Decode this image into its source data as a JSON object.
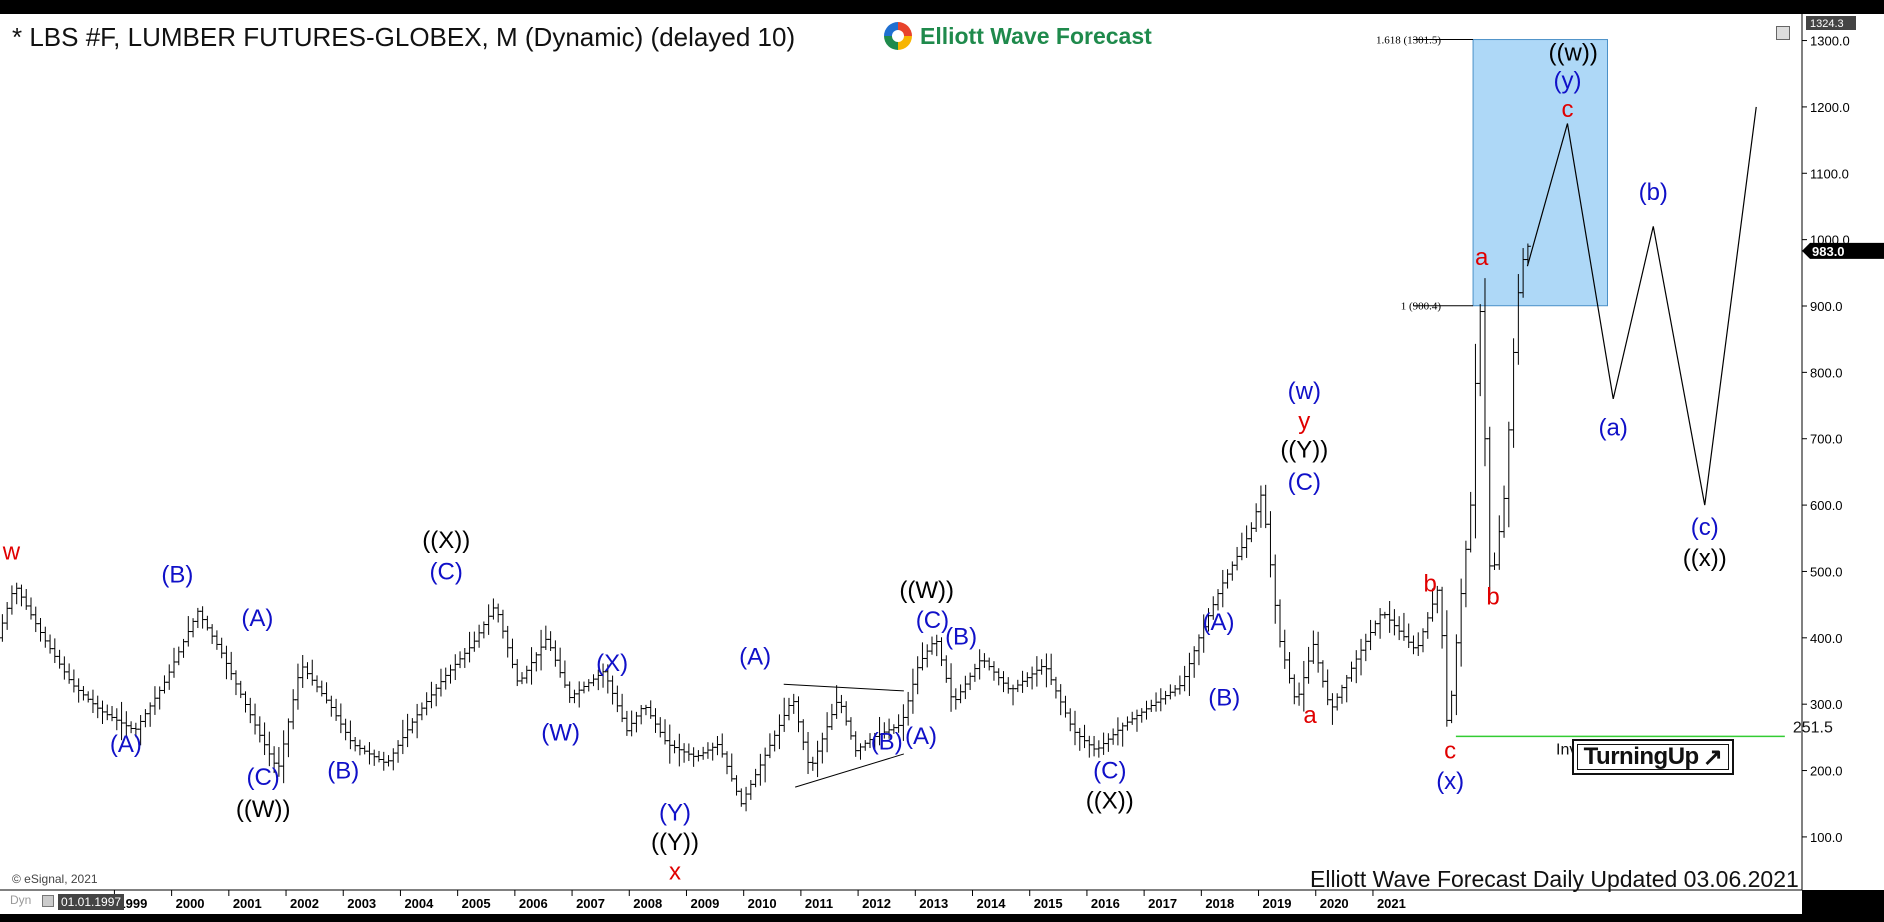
{
  "title": "* LBS #F, LUMBER FUTURES-GLOBEX, M (Dynamic) (delayed 10)",
  "logo_text": "Elliott Wave Forecast",
  "footer_text": "Elliott Wave Forecast Daily Updated 03.06.2021",
  "copyright": "© eSignal, 2021",
  "badge_text": "TurningUp",
  "badge_icon": "arrow-up-right-icon",
  "toolbar": {
    "dyn_label": "Dyn",
    "start_date": "01.01.1997"
  },
  "chart_data": {
    "type": "ohlc",
    "interval": "monthly",
    "colors": {
      "bars": "#000000",
      "wave_blue": "#1010c8",
      "wave_red": "#e00000",
      "wave_black": "#000000",
      "target_box": "#aed8f7",
      "invalidation": "#33cc33"
    },
    "y_ticks": [
      "100.0",
      "200.0",
      "300.0",
      "400.0",
      "500.0",
      "600.0",
      "700.0",
      "800.0",
      "900.0",
      "1000.0",
      "1100.0",
      "1200.0",
      "1300.0"
    ],
    "x_ticks": [
      "1999",
      "2000",
      "2001",
      "2002",
      "2003",
      "2004",
      "2005",
      "2006",
      "2007",
      "2008",
      "2009",
      "2010",
      "2011",
      "2012",
      "2013",
      "2014",
      "2015",
      "2016",
      "2017",
      "2018",
      "2019",
      "2020",
      "2021"
    ],
    "ylim": [
      20,
      1340
    ],
    "xlim": [
      1997.0,
      2028.5
    ],
    "last_price_label": "983.0",
    "axis_top_label": "1324.3",
    "anchors": [
      [
        1997.0,
        400
      ],
      [
        1997.3,
        480
      ],
      [
        1997.8,
        400
      ],
      [
        1998.3,
        330
      ],
      [
        1998.8,
        290
      ],
      [
        1999.4,
        260
      ],
      [
        1999.9,
        330
      ],
      [
        2000.5,
        440
      ],
      [
        2000.9,
        380
      ],
      [
        2001.6,
        250
      ],
      [
        2001.9,
        200
      ],
      [
        2002.3,
        360
      ],
      [
        2002.8,
        300
      ],
      [
        2003.2,
        240
      ],
      [
        2003.8,
        210
      ],
      [
        2004.3,
        280
      ],
      [
        2004.8,
        340
      ],
      [
        2005.3,
        390
      ],
      [
        2005.7,
        450
      ],
      [
        2006.1,
        330
      ],
      [
        2006.6,
        400
      ],
      [
        2007.0,
        310
      ],
      [
        2007.6,
        350
      ],
      [
        2008.0,
        260
      ],
      [
        2008.3,
        300
      ],
      [
        2008.7,
        240
      ],
      [
        2009.2,
        220
      ],
      [
        2009.6,
        240
      ],
      [
        2010.0,
        150
      ],
      [
        2010.4,
        220
      ],
      [
        2010.9,
        310
      ],
      [
        2011.2,
        200
      ],
      [
        2011.7,
        310
      ],
      [
        2012.0,
        230
      ],
      [
        2012.3,
        250
      ],
      [
        2012.8,
        270
      ],
      [
        2013.1,
        360
      ],
      [
        2013.4,
        400
      ],
      [
        2013.7,
        300
      ],
      [
        2014.2,
        370
      ],
      [
        2014.7,
        320
      ],
      [
        2015.3,
        360
      ],
      [
        2015.8,
        260
      ],
      [
        2016.2,
        230
      ],
      [
        2016.7,
        270
      ],
      [
        2017.2,
        300
      ],
      [
        2017.7,
        330
      ],
      [
        2018.0,
        400
      ],
      [
        2018.4,
        480
      ],
      [
        2018.9,
        560
      ],
      [
        2019.1,
        620
      ],
      [
        2019.4,
        400
      ],
      [
        2019.7,
        300
      ],
      [
        2020.0,
        390
      ],
      [
        2020.3,
        290
      ],
      [
        2020.7,
        360
      ],
      [
        2021.2,
        440
      ],
      [
        2021.8,
        380
      ],
      [
        2022.2,
        480
      ],
      [
        2022.35,
        250
      ],
      [
        2022.55,
        440
      ],
      [
        2022.75,
        600
      ],
      [
        2022.9,
        930
      ],
      [
        2023.1,
        470
      ],
      [
        2023.35,
        620
      ],
      [
        2023.55,
        900
      ],
      [
        2023.7,
        990
      ]
    ],
    "forecast_path": [
      [
        2023.7,
        960
      ],
      [
        2024.4,
        1175
      ],
      [
        2025.2,
        760
      ],
      [
        2025.9,
        1020
      ],
      [
        2026.8,
        600
      ],
      [
        2027.7,
        1200
      ]
    ],
    "fib_box": {
      "x0": 2022.75,
      "x1": 2025.1,
      "y0": 900.4,
      "y1": 1301.5,
      "labels": [
        "1.618 (1301.5)",
        "1 (900.4)"
      ]
    },
    "invalidation": {
      "level": 251.5,
      "x0": 2022.45,
      "x1": 2028.2,
      "value_label": "251.5",
      "label": "Invalidation level"
    },
    "triangle": {
      "upper": [
        [
          2010.7,
          330
        ],
        [
          2012.8,
          320
        ]
      ],
      "lower": [
        [
          2010.9,
          175
        ],
        [
          2012.8,
          225
        ]
      ]
    },
    "wave_labels": [
      {
        "text": "w",
        "x": 1997.2,
        "y": 518,
        "color": "red"
      },
      {
        "text": "(B)",
        "x": 2000.1,
        "y": 483,
        "color": "blue"
      },
      {
        "text": "(A)",
        "x": 1999.2,
        "y": 228,
        "color": "blue"
      },
      {
        "text": "(A)",
        "x": 2001.5,
        "y": 418,
        "color": "blue"
      },
      {
        "text": "(C)",
        "x": 2001.6,
        "y": 178,
        "color": "blue"
      },
      {
        "text": "((W))",
        "x": 2001.6,
        "y": 130,
        "color": "black"
      },
      {
        "text": "(B)",
        "x": 2003.0,
        "y": 188,
        "color": "blue"
      },
      {
        "text": "((X))",
        "x": 2004.8,
        "y": 535,
        "color": "black"
      },
      {
        "text": "(C)",
        "x": 2004.8,
        "y": 488,
        "color": "blue"
      },
      {
        "text": "(W)",
        "x": 2006.8,
        "y": 245,
        "color": "blue"
      },
      {
        "text": "(X)",
        "x": 2007.7,
        "y": 350,
        "color": "blue"
      },
      {
        "text": "(A)",
        "x": 2010.2,
        "y": 360,
        "color": "blue"
      },
      {
        "text": "(Y)",
        "x": 2008.8,
        "y": 125,
        "color": "blue"
      },
      {
        "text": "((Y))",
        "x": 2008.8,
        "y": 80,
        "color": "black"
      },
      {
        "text": "x",
        "x": 2008.8,
        "y": 36,
        "color": "red"
      },
      {
        "text": "((W))",
        "x": 2013.2,
        "y": 460,
        "color": "black"
      },
      {
        "text": "(C)",
        "x": 2013.3,
        "y": 415,
        "color": "blue"
      },
      {
        "text": "(B)",
        "x": 2013.8,
        "y": 390,
        "color": "blue"
      },
      {
        "text": "(B)",
        "x": 2012.5,
        "y": 232,
        "color": "blue"
      },
      {
        "text": "(A)",
        "x": 2013.1,
        "y": 240,
        "color": "blue"
      },
      {
        "text": "(C)",
        "x": 2016.4,
        "y": 188,
        "color": "blue"
      },
      {
        "text": "((X))",
        "x": 2016.4,
        "y": 143,
        "color": "black"
      },
      {
        "text": "(A)",
        "x": 2018.3,
        "y": 412,
        "color": "blue"
      },
      {
        "text": "(B)",
        "x": 2018.4,
        "y": 298,
        "color": "blue"
      },
      {
        "text": "(w)",
        "x": 2019.8,
        "y": 760,
        "color": "blue"
      },
      {
        "text": "y",
        "x": 2019.8,
        "y": 715,
        "color": "red"
      },
      {
        "text": "((Y))",
        "x": 2019.8,
        "y": 672,
        "color": "black"
      },
      {
        "text": "(C)",
        "x": 2019.8,
        "y": 623,
        "color": "blue"
      },
      {
        "text": "a",
        "x": 2019.9,
        "y": 272,
        "color": "red"
      },
      {
        "text": "b",
        "x": 2022.0,
        "y": 470,
        "color": "red"
      },
      {
        "text": "c",
        "x": 2022.35,
        "y": 218,
        "color": "red"
      },
      {
        "text": "(x)",
        "x": 2022.35,
        "y": 172,
        "color": "blue"
      },
      {
        "text": "a",
        "x": 2022.9,
        "y": 962,
        "color": "red"
      },
      {
        "text": "b",
        "x": 2023.1,
        "y": 450,
        "color": "red"
      },
      {
        "text": "((w))",
        "x": 2024.5,
        "y": 1270,
        "color": "black"
      },
      {
        "text": "(y)",
        "x": 2024.4,
        "y": 1228,
        "color": "blue"
      },
      {
        "text": "c",
        "x": 2024.4,
        "y": 1185,
        "color": "red"
      },
      {
        "text": "(a)",
        "x": 2025.2,
        "y": 705,
        "color": "blue"
      },
      {
        "text": "(b)",
        "x": 2025.9,
        "y": 1060,
        "color": "blue"
      },
      {
        "text": "(c)",
        "x": 2026.8,
        "y": 555,
        "color": "blue"
      },
      {
        "text": "((x))",
        "x": 2026.8,
        "y": 508,
        "color": "black"
      }
    ]
  }
}
